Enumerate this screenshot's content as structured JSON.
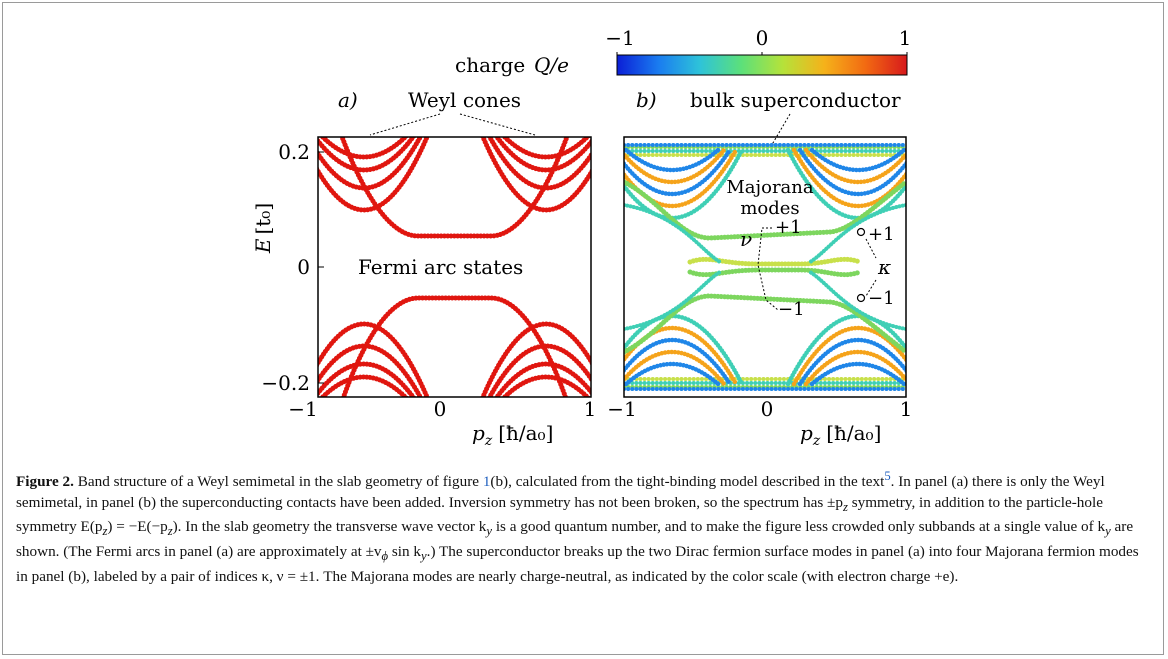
{
  "colorbar": {
    "label_text": "charge",
    "label_var": "Q/e",
    "ticks": [
      "−1",
      "0",
      "1"
    ],
    "colors": [
      "#0b1fd6",
      "#1a7cf0",
      "#2ec3d9",
      "#5ce07a",
      "#b5e23a",
      "#f5b21a",
      "#f26a12",
      "#d7191c"
    ]
  },
  "panel_a": {
    "label": "a)",
    "annotation": "Weyl cones",
    "inner_text": "Fermi arc states",
    "ylabel_var": "E",
    "ylabel_unit": "[t₀]",
    "yticks": [
      "0.2",
      "0",
      "−0.2"
    ],
    "xticks": [
      "−1",
      "0",
      "1"
    ],
    "xlabel_var": "p",
    "xlabel_sub": "z",
    "xlabel_unit": "[ħ/a₀]",
    "band_color": "#e0160f"
  },
  "panel_b": {
    "label": "b)",
    "annotation": "bulk superconductor",
    "majorana_line1": "Majorana",
    "majorana_line2": "modes",
    "nu": "ν",
    "kappa": "κ",
    "plus_one": "+1",
    "minus_one": "−1",
    "xticks": [
      "−1",
      "0",
      "1"
    ],
    "xlabel_var": "p",
    "xlabel_sub": "z",
    "xlabel_unit": "[ħ/a₀]"
  },
  "caption": {
    "figure_label": "Figure 2.",
    "text_1": " Band structure of a Weyl semimetal in the slab geometry of figure ",
    "ref_1": "1",
    "text_2": "(b), calculated from the tight-binding model described in the text",
    "ref_2": "5",
    "text_3": ". In panel (a) there is only the Weyl semimetal, in panel (b) the superconducting contacts have been added. Inversion symmetry has not been broken, so the spectrum has ±p",
    "sub_z": "z",
    "text_4": " symmetry, in addition to the particle-hole symmetry E(p",
    "text_5": ") = −E(−p",
    "text_6": "). In the slab geometry the transverse wave vector k",
    "sub_y": "y",
    "text_7": " is a good quantum number, and to make the figure less crowded only subbands at a single value of k",
    "text_8": " are shown. (The Fermi arcs in panel (a) are approximately at ±v",
    "sub_phi": "ϕ",
    "text_9": " sin k",
    "text_10": ".) The superconductor breaks up the two Dirac fermion surface modes in panel (a) into four Majorana fermion modes in panel (b), labeled by a pair of indices κ, ν = ±1. The Majorana modes are nearly charge-neutral, as indicated by the color scale (with electron charge +e)."
  }
}
